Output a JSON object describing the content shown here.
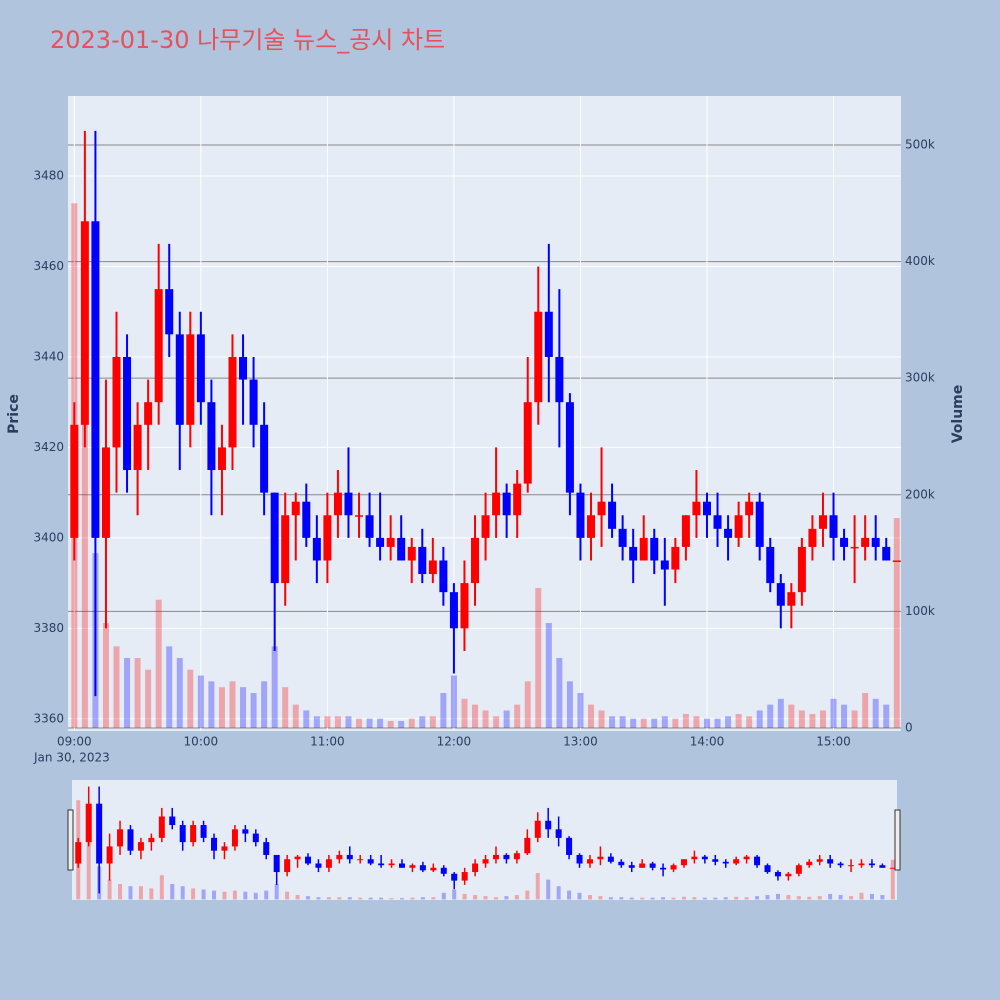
{
  "chart_data": {
    "type": "candlestick",
    "title": "2023-01-30 나무기술 뉴스_공시 차트",
    "x_date_label": "Jan 30, 2023",
    "y_label": "Price",
    "y2_label": "Volume",
    "increasing_color": "#ff0000",
    "decreasing_color": "#0000ff",
    "x": [
      "09:00",
      "09:05",
      "09:10",
      "09:15",
      "09:20",
      "09:25",
      "09:30",
      "09:35",
      "09:40",
      "09:45",
      "09:50",
      "09:55",
      "10:00",
      "10:05",
      "10:10",
      "10:15",
      "10:20",
      "10:25",
      "10:30",
      "10:35",
      "10:40",
      "10:45",
      "10:50",
      "10:55",
      "11:00",
      "11:05",
      "11:10",
      "11:15",
      "11:20",
      "11:25",
      "11:30",
      "11:35",
      "11:40",
      "11:45",
      "11:50",
      "11:55",
      "12:00",
      "12:05",
      "12:10",
      "12:15",
      "12:20",
      "12:25",
      "12:30",
      "12:35",
      "12:40",
      "12:45",
      "12:50",
      "12:55",
      "13:00",
      "13:05",
      "13:10",
      "13:15",
      "13:20",
      "13:25",
      "13:30",
      "13:35",
      "13:40",
      "13:45",
      "13:50",
      "13:55",
      "14:00",
      "14:05",
      "14:10",
      "14:15",
      "14:20",
      "14:25",
      "14:30",
      "14:35",
      "14:40",
      "14:45",
      "14:50",
      "14:55",
      "15:00",
      "15:05",
      "15:10",
      "15:15",
      "15:20",
      "15:25",
      "15:30"
    ],
    "open": [
      3400,
      3425,
      3470,
      3400,
      3420,
      3440,
      3415,
      3425,
      3430,
      3455,
      3445,
      3425,
      3445,
      3430,
      3415,
      3420,
      3440,
      3435,
      3425,
      3410,
      3390,
      3405,
      3408,
      3400,
      3395,
      3405,
      3410,
      3405,
      3405,
      3400,
      3398,
      3400,
      3395,
      3398,
      3392,
      3395,
      3388,
      3380,
      3390,
      3400,
      3405,
      3410,
      3405,
      3412,
      3430,
      3450,
      3440,
      3430,
      3410,
      3400,
      3405,
      3408,
      3402,
      3398,
      3395,
      3400,
      3395,
      3393,
      3398,
      3405,
      3408,
      3405,
      3402,
      3400,
      3405,
      3408,
      3398,
      3390,
      3385,
      3388,
      3398,
      3402,
      3405,
      3400,
      3398,
      3398,
      3400,
      3398,
      3395
    ],
    "high": [
      3430,
      3490,
      3490,
      3435,
      3450,
      3445,
      3430,
      3435,
      3465,
      3465,
      3450,
      3450,
      3450,
      3435,
      3425,
      3445,
      3445,
      3440,
      3430,
      3410,
      3410,
      3410,
      3412,
      3405,
      3410,
      3415,
      3420,
      3410,
      3410,
      3410,
      3405,
      3405,
      3400,
      3402,
      3400,
      3398,
      3390,
      3395,
      3405,
      3410,
      3420,
      3412,
      3415,
      3440,
      3460,
      3465,
      3455,
      3432,
      3412,
      3410,
      3420,
      3412,
      3405,
      3402,
      3405,
      3402,
      3400,
      3400,
      3405,
      3415,
      3410,
      3410,
      3405,
      3408,
      3410,
      3410,
      3400,
      3392,
      3390,
      3400,
      3405,
      3410,
      3410,
      3402,
      3405,
      3405,
      3405,
      3400,
      3395
    ],
    "low": [
      3395,
      3420,
      3365,
      3380,
      3410,
      3410,
      3405,
      3415,
      3425,
      3440,
      3415,
      3420,
      3425,
      3405,
      3405,
      3415,
      3425,
      3420,
      3405,
      3375,
      3385,
      3395,
      3398,
      3390,
      3390,
      3400,
      3400,
      3400,
      3398,
      3395,
      3395,
      3395,
      3390,
      3390,
      3390,
      3385,
      3370,
      3375,
      3385,
      3395,
      3400,
      3400,
      3400,
      3410,
      3425,
      3430,
      3420,
      3405,
      3395,
      3395,
      3398,
      3400,
      3395,
      3390,
      3395,
      3392,
      3385,
      3390,
      3395,
      3400,
      3400,
      3398,
      3395,
      3398,
      3400,
      3395,
      3388,
      3380,
      3380,
      3385,
      3395,
      3398,
      3395,
      3395,
      3390,
      3395,
      3395,
      3395,
      3395
    ],
    "close": [
      3425,
      3470,
      3400,
      3420,
      3440,
      3415,
      3425,
      3430,
      3455,
      3445,
      3425,
      3445,
      3430,
      3415,
      3420,
      3440,
      3435,
      3425,
      3410,
      3390,
      3405,
      3408,
      3400,
      3395,
      3405,
      3410,
      3405,
      3405,
      3400,
      3398,
      3400,
      3395,
      3398,
      3392,
      3395,
      3388,
      3380,
      3390,
      3400,
      3405,
      3410,
      3405,
      3412,
      3430,
      3450,
      3440,
      3430,
      3410,
      3400,
      3405,
      3408,
      3402,
      3398,
      3395,
      3400,
      3395,
      3393,
      3398,
      3405,
      3408,
      3405,
      3402,
      3400,
      3405,
      3408,
      3398,
      3390,
      3385,
      3388,
      3398,
      3402,
      3405,
      3400,
      3398,
      3398,
      3400,
      3398,
      3395,
      3395
    ],
    "volume": [
      450000,
      320000,
      150000,
      90000,
      70000,
      60000,
      60000,
      50000,
      110000,
      70000,
      60000,
      50000,
      45000,
      40000,
      35000,
      40000,
      35000,
      30000,
      40000,
      70000,
      35000,
      20000,
      15000,
      10000,
      10000,
      10000,
      10000,
      8000,
      8000,
      8000,
      6000,
      6000,
      8000,
      10000,
      10000,
      30000,
      45000,
      25000,
      20000,
      15000,
      10000,
      15000,
      20000,
      40000,
      120000,
      90000,
      60000,
      40000,
      30000,
      20000,
      15000,
      10000,
      10000,
      8000,
      8000,
      8000,
      10000,
      8000,
      12000,
      10000,
      8000,
      8000,
      10000,
      12000,
      10000,
      15000,
      20000,
      25000,
      20000,
      15000,
      12000,
      15000,
      25000,
      20000,
      15000,
      30000,
      25000,
      20000,
      180000
    ],
    "xlim": [
      "08:57",
      "15:32"
    ],
    "xticks": [
      "09:00",
      "10:00",
      "11:00",
      "12:00",
      "13:00",
      "14:00",
      "15:00"
    ],
    "ylim": [
      3357.3,
      3497.7
    ],
    "yticks": [
      3360,
      3380,
      3400,
      3420,
      3440,
      3460,
      3480
    ],
    "y2lim": [
      -2600,
      542000
    ],
    "y2ticks": [
      0,
      {
        "value": 100000,
        "label": "100k"
      },
      {
        "value": 200000,
        "label": "200k"
      },
      {
        "value": 300000,
        "label": "300k"
      },
      {
        "value": 400000,
        "label": "400k"
      },
      {
        "value": 500000,
        "label": "500k"
      }
    ],
    "grid": true
  }
}
